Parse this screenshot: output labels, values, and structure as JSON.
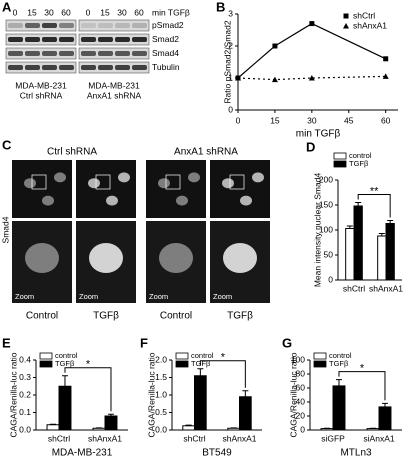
{
  "blot": {
    "label": "A",
    "times": [
      "0",
      "15",
      "30",
      "60"
    ],
    "time_unit": "min TGFβ",
    "rows": [
      "pSmad2",
      "Smad2",
      "Smad4",
      "Tubulin"
    ],
    "groups": [
      [
        "MDA-MB-231",
        "Ctrl shRNA"
      ],
      [
        "MDA-MB-231",
        "AnxA1 shRNA"
      ]
    ]
  },
  "microscopy": {
    "label": "C",
    "groups": [
      "Ctrl shRNA",
      "AnxA1 shRNA"
    ],
    "stain": "Smad4",
    "columns": [
      "Control",
      "TGFβ",
      "Control",
      "TGFβ"
    ],
    "zoom": "Zoom"
  },
  "chart_data": [
    {
      "type": "line",
      "label": "B",
      "ylabel": "Ratio pSmad2/Smad2",
      "xlabel": "min TGFβ",
      "x": [
        0,
        15,
        30,
        60
      ],
      "series": [
        {
          "name": "shCtrl",
          "color": "#000000",
          "values": [
            1,
            2,
            2.7,
            1.6
          ],
          "marker": "square",
          "dash": false
        },
        {
          "name": "shAnxA1",
          "color": "#000000",
          "values": [
            1,
            0.95,
            1,
            1.05
          ],
          "marker": "triangle",
          "dash": true
        }
      ],
      "xlim": [
        0,
        65
      ],
      "xticks": [
        0,
        15,
        30,
        45,
        60
      ],
      "ylim": [
        0,
        3
      ],
      "yticks": [
        0,
        1,
        2,
        3
      ]
    },
    {
      "type": "bar",
      "label": "D",
      "ylabel": "Mean intensity nuclear Smad4",
      "categories": [
        "shCtrl",
        "shAnxA1"
      ],
      "series": [
        {
          "name": "control",
          "color": "#ffffff",
          "values": [
            103,
            88
          ],
          "errors": [
            5,
            5
          ]
        },
        {
          "name": "TGFβ",
          "color": "#000000",
          "values": [
            148,
            113
          ],
          "errors": [
            7,
            6
          ]
        }
      ],
      "annotation": "**",
      "ylim": [
        0,
        200
      ],
      "yticks": [
        0,
        50,
        100,
        150,
        200
      ]
    },
    {
      "type": "bar",
      "label": "E",
      "ylabel": "CAGA/Renilla-luc ratio",
      "xlabel": "MDA-MB-231",
      "categories": [
        "shCtrl",
        "shAnxA1"
      ],
      "series": [
        {
          "name": "control",
          "color": "#ffffff",
          "values": [
            0.03,
            0.01
          ],
          "errors": [
            0.003,
            0.002
          ]
        },
        {
          "name": "TGFβ",
          "color": "#000000",
          "values": [
            0.25,
            0.08
          ],
          "errors": [
            0.06,
            0.01
          ]
        }
      ],
      "annotation": "*",
      "ylim": [
        0,
        0.4
      ],
      "yticks": [
        {
          "value": 0,
          "label": "0.0"
        },
        0.1,
        0.2,
        0.3,
        0.4
      ]
    },
    {
      "type": "bar",
      "label": "F",
      "ylabel": "CAGA/Renilla-luc ratio",
      "xlabel": "BT549",
      "categories": [
        "shCtrl",
        "shAnxA1"
      ],
      "series": [
        {
          "name": "control",
          "color": "#ffffff",
          "values": [
            0.12,
            0.05
          ],
          "errors": [
            0.02,
            0.01
          ]
        },
        {
          "name": "TGFβ",
          "color": "#000000",
          "values": [
            1.55,
            0.95
          ],
          "errors": [
            0.2,
            0.17
          ]
        }
      ],
      "annotation": "*",
      "ylim": [
        0,
        2
      ],
      "yticks": [
        {
          "value": 0,
          "label": "0.0"
        },
        0.5,
        {
          "value": 1,
          "label": "1.0"
        },
        1.5,
        {
          "value": 2,
          "label": "2.0"
        }
      ]
    },
    {
      "type": "bar",
      "label": "G",
      "ylabel": "CAGA/Renilla-luc ratio",
      "xlabel": "MTLn3",
      "categories": [
        "siGFP",
        "siAnxA1"
      ],
      "series": [
        {
          "name": "control",
          "color": "#ffffff",
          "values": [
            2,
            2
          ],
          "errors": [
            0.5,
            0.5
          ]
        },
        {
          "name": "TGFβ",
          "color": "#000000",
          "values": [
            63,
            33
          ],
          "errors": [
            9,
            5
          ]
        }
      ],
      "annotation": "*",
      "ylim": [
        0,
        100
      ],
      "yticks": [
        0,
        20,
        40,
        60,
        80,
        100
      ]
    }
  ]
}
